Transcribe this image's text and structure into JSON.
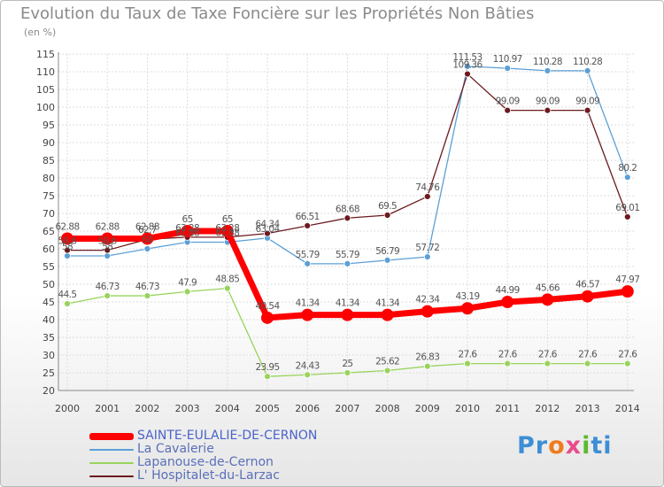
{
  "title": "Evolution du Taux de Taxe Foncière sur les Propriétés Non Bâties",
  "subtitle": "(en %)",
  "brand": {
    "p1": "Pr",
    "p2": "o",
    "p3": "x",
    "p4": "i",
    "p5": "ti"
  },
  "chart_data": {
    "type": "line",
    "title": "Evolution du Taux de Taxe Foncière sur les Propriétés Non Bâties",
    "ylabel": "(en %)",
    "xlabel": "",
    "ylim": [
      20,
      115
    ],
    "yticks": [
      20,
      25,
      30,
      35,
      40,
      45,
      50,
      55,
      60,
      65,
      70,
      75,
      80,
      85,
      90,
      95,
      100,
      105,
      110,
      115
    ],
    "categories": [
      "2000",
      "2001",
      "2002",
      "2003",
      "2004",
      "2005",
      "2006",
      "2007",
      "2008",
      "2009",
      "2010",
      "2011",
      "2012",
      "2013",
      "2014"
    ],
    "series": [
      {
        "name": "SAINTE-EULALIE-DE-CERNON",
        "color": "#ff0000",
        "width": 7,
        "marker": 7,
        "values": [
          62.88,
          62.88,
          62.88,
          65,
          65,
          40.54,
          41.34,
          41.34,
          41.34,
          42.34,
          43.19,
          44.99,
          45.66,
          46.57,
          47.97
        ],
        "labels": [
          "62.88",
          "62.88",
          "62.88",
          "65",
          "65",
          "40.54",
          "41.34",
          "41.34",
          "41.34",
          "42.34",
          "43.19",
          "44.99",
          "45.66",
          "46.57",
          "47.97"
        ]
      },
      {
        "name": "La Cavalerie",
        "color": "#5c9fd6",
        "width": 1.3,
        "marker": 3.5,
        "values": [
          58,
          58,
          60,
          61.88,
          61.88,
          63.04,
          55.79,
          55.79,
          56.79,
          57.72,
          111.53,
          110.97,
          110.28,
          110.28,
          80.2
        ],
        "labels": [
          "58",
          "58",
          "60",
          "61.88",
          "61.88",
          "63.04",
          "55.79",
          "55.79",
          "56.79",
          "57.72",
          "111.53",
          "110.97",
          "110.28",
          "110.28",
          "80.2"
        ]
      },
      {
        "name": "Lapanouse-de-Cernon",
        "color": "#99d35c",
        "width": 1.3,
        "marker": 3.5,
        "values": [
          44.5,
          46.73,
          46.73,
          47.9,
          48.85,
          23.95,
          24.43,
          25,
          25.62,
          26.83,
          27.6,
          27.6,
          27.6,
          27.6,
          27.6
        ],
        "labels": [
          "44.5",
          "46.73",
          "46.73",
          "47.9",
          "48.85",
          "23.95",
          "24.43",
          "25",
          "25.62",
          "26.83",
          "27.6",
          "27.6",
          "27.6",
          "27.6",
          "27.6"
        ]
      },
      {
        "name": "L' Hospitalet-du-Larzac",
        "color": "#6b1a1f",
        "width": 1.3,
        "marker": 3.5,
        "values": [
          59.6,
          59.6,
          62.7,
          63.28,
          63.28,
          64.34,
          66.51,
          68.68,
          69.5,
          74.76,
          109.36,
          99.09,
          99.09,
          99.09,
          69.01
        ],
        "labels": [
          "59.6",
          "59.6",
          "62.7",
          "63.28",
          "63.28",
          "64.34",
          "66.51",
          "68.68",
          "69.5",
          "74.76",
          "109.36",
          "99.09",
          "99.09",
          "99.09",
          "69.01"
        ]
      }
    ],
    "legend_position": "bottom-left"
  }
}
